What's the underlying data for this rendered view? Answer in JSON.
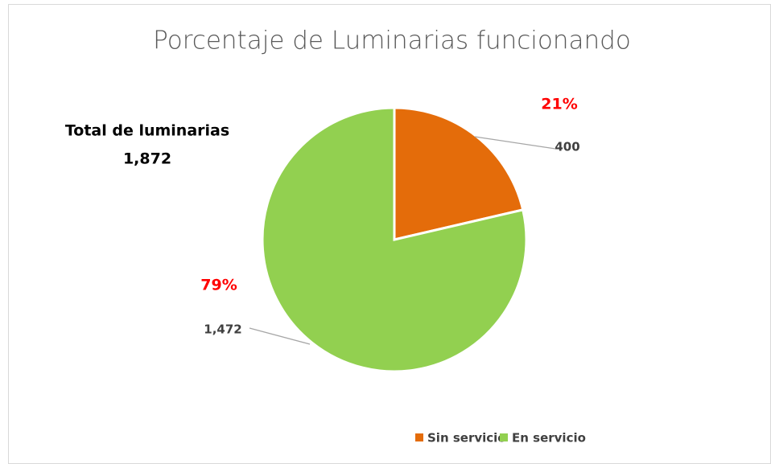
{
  "chart_data": {
    "type": "pie",
    "title": "Porcentaje de Luminarias funcionando",
    "categories": [
      "Sin servicio",
      "En servicio"
    ],
    "values": [
      400,
      1472
    ],
    "value_labels": [
      "400",
      "1,472"
    ],
    "percents": [
      21,
      79
    ],
    "percent_labels": [
      "21%",
      "79%"
    ],
    "colors": [
      "#e46c0a",
      "#92d050"
    ],
    "total": {
      "label": "Total de luminarias",
      "value": 1872,
      "value_label": "1,872"
    },
    "legend": "bottom"
  }
}
